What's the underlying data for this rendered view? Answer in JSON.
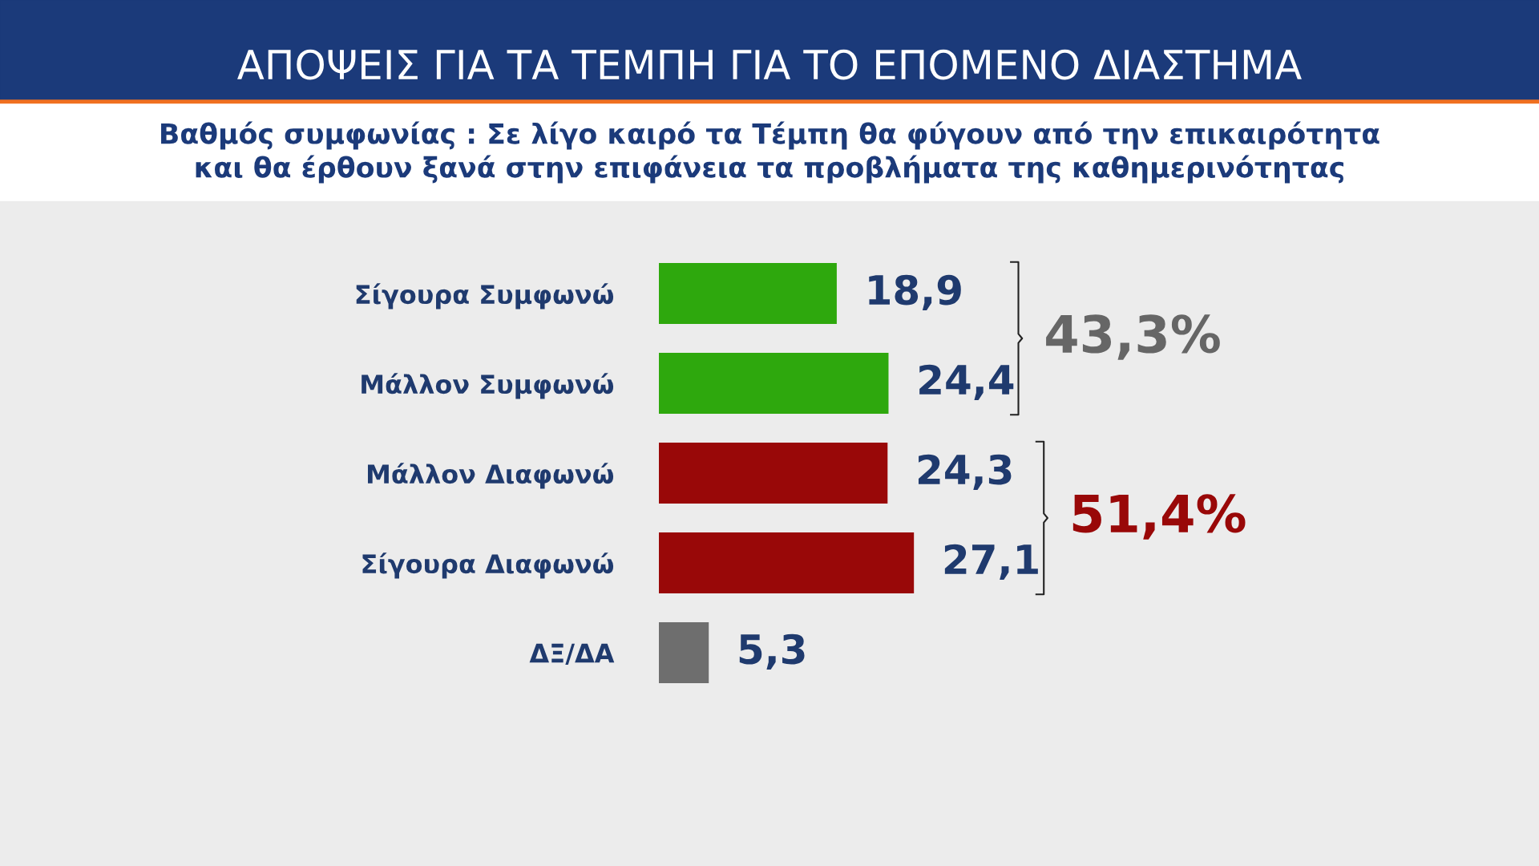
{
  "chart_data": {
    "type": "bar",
    "orientation": "horizontal",
    "title": "ΑΠΟΨΕΙΣ ΓΙΑ ΤΑ ΤΕΜΠΗ ΓΙΑ ΤΟ ΕΠΟΜΕΝΟ ΔΙΑΣΤΗΜΑ",
    "subtitle": "Βαθμός συμφωνίας : Σε λίγο καιρό τα Τέμπη θα φύγουν από την επικαιρότητα\nκαι θα έρθουν ξανά στην επιφάνεια τα προβλήματα της καθημερινότητας",
    "categories": [
      "Σίγουρα Συμφωνώ",
      "Μάλλον Συμφωνώ",
      "Μάλλον Διαφωνώ",
      "Σίγουρα Διαφωνώ",
      "ΔΞ/ΔΑ"
    ],
    "values": [
      18.9,
      24.4,
      24.3,
      27.1,
      5.3
    ],
    "colors": [
      "#2ea80d",
      "#2ea80d",
      "#990808",
      "#990808",
      "#6e6e6e"
    ],
    "value_labels": [
      "18,9",
      "24,4",
      "24,3",
      "27,1",
      "5,3"
    ],
    "annotations": [
      "43,3%",
      "51,4%"
    ],
    "grid": false,
    "legend": false,
    "tick_labels": "y"
  }
}
